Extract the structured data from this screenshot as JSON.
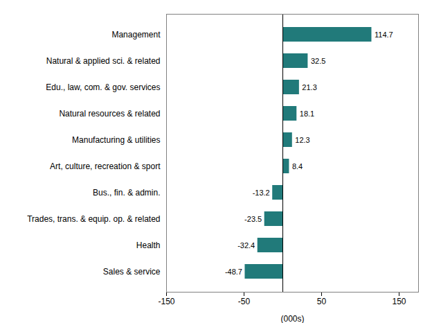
{
  "chart_data": {
    "type": "bar",
    "orientation": "horizontal",
    "categories": [
      "Sales & service",
      "Health",
      "Trades, trans. & equip. op. & related",
      "Bus., fin. & admin.",
      "Art, culture, recreation & sport",
      "Manufacturing & utilities",
      "Natural resources & related",
      "Edu., law, com. & gov. services",
      "Natural & applied sci. & related",
      "Management"
    ],
    "values": [
      -48.7,
      -32.4,
      -23.5,
      -13.2,
      8.4,
      12.3,
      18.1,
      21.3,
      32.5,
      114.7
    ],
    "color": "#217a7a",
    "xlabel": "(000s)",
    "xlim": [
      -150,
      175
    ],
    "xticks": [
      -150,
      -50,
      50,
      150
    ],
    "data_labels": true,
    "grid": false
  }
}
